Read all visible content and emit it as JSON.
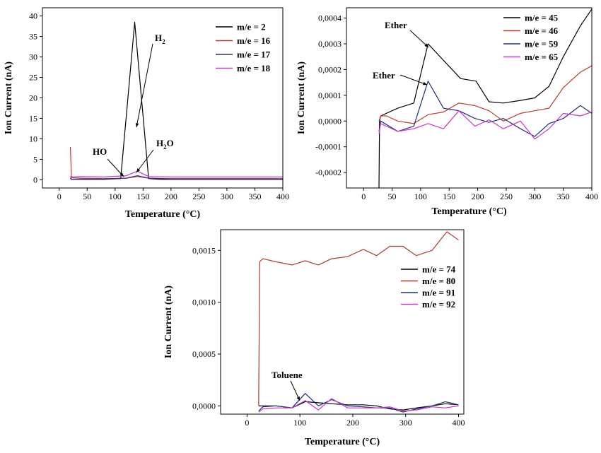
{
  "chart_data": [
    {
      "type": "line",
      "title": "",
      "xlabel": "Temperature (°C)",
      "ylabel": "Ion Current (nA)",
      "xlim": [
        -30,
        400
      ],
      "ylim": [
        -2,
        42
      ],
      "xticks": [
        0,
        50,
        100,
        150,
        200,
        250,
        300,
        350,
        400
      ],
      "xtick_labels": [
        "0",
        "50",
        "100",
        "150",
        "200",
        "250",
        "300",
        "350",
        "400"
      ],
      "yticks": [
        0,
        5,
        10,
        15,
        20,
        25,
        30,
        35,
        40
      ],
      "ytick_labels": [
        "0",
        "5",
        "10",
        "15",
        "20",
        "25",
        "30",
        "35",
        "40"
      ],
      "legend_position": "top-right",
      "series": [
        {
          "name": "m/e = 2",
          "color": "#000000",
          "x": [
            20,
            22,
            40,
            80,
            110,
            135,
            160,
            180,
            250,
            300,
            350,
            400
          ],
          "y": [
            0.5,
            0.1,
            0.1,
            0.1,
            0.3,
            38.5,
            0.3,
            0.1,
            0.1,
            0.1,
            0.1,
            0.1
          ]
        },
        {
          "name": "m/e = 16",
          "color": "#c0392b",
          "x": [
            20,
            22,
            40,
            80,
            120,
            140,
            160,
            200,
            300,
            400
          ],
          "y": [
            8,
            0.5,
            0.4,
            0.3,
            0.4,
            0.8,
            0.4,
            0.3,
            0.3,
            0.3
          ]
        },
        {
          "name": "m/e = 17",
          "color": "#2c2c8c",
          "x": [
            20,
            22,
            40,
            80,
            120,
            140,
            160,
            200,
            300,
            400
          ],
          "y": [
            0.3,
            0.1,
            0.2,
            0.2,
            0.4,
            1.0,
            0.4,
            0.2,
            0.2,
            0.2
          ]
        },
        {
          "name": "m/e = 18",
          "color": "#cc33cc",
          "x": [
            20,
            22,
            40,
            80,
            120,
            140,
            160,
            200,
            300,
            400
          ],
          "y": [
            0.9,
            0.7,
            0.8,
            0.7,
            1.0,
            2.1,
            0.8,
            0.7,
            0.7,
            0.7
          ]
        }
      ],
      "annotations": [
        {
          "text": "H2",
          "main": "H",
          "sub": "2"
        },
        {
          "text": "HO",
          "main": "HO",
          "sub": ""
        },
        {
          "text": "H2O",
          "main": "H",
          "sub": "2",
          "tail": "O"
        }
      ]
    },
    {
      "type": "line",
      "title": "",
      "xlabel": "Temperature (°C)",
      "ylabel": "Ion Current (nA)",
      "xlim": [
        -30,
        400
      ],
      "ylim": [
        -0.00026,
        0.00044
      ],
      "xticks": [
        0,
        50,
        100,
        150,
        200,
        250,
        300,
        350,
        400
      ],
      "xtick_labels": [
        "0",
        "50",
        "100",
        "150",
        "200",
        "250",
        "300",
        "350",
        "400"
      ],
      "yticks": [
        -0.0002,
        -0.0001,
        0,
        0.0001,
        0.0002,
        0.0003,
        0.0004
      ],
      "ytick_labels": [
        "-0,0002",
        "-0,0001",
        "0,0000",
        "0,0001",
        "0,0002",
        "0,0003",
        "0,0004"
      ],
      "legend_position": "top-right",
      "series": [
        {
          "name": "m/e = 45",
          "color": "#000000",
          "x": [
            27,
            28,
            30,
            60,
            88,
            113,
            170,
            197,
            220,
            245,
            275,
            300,
            325,
            350,
            380,
            400
          ],
          "y": [
            -0.00026,
            0.0,
            2e-05,
            5e-05,
            7e-05,
            0.0003,
            0.000165,
            0.000155,
            7.5e-05,
            7e-05,
            8e-05,
            9e-05,
            0.000135,
            0.00025,
            0.00037,
            0.000435
          ]
        },
        {
          "name": "m/e = 46",
          "color": "#c0392b",
          "x": [
            27,
            30,
            40,
            60,
            88,
            113,
            140,
            167,
            195,
            220,
            245,
            275,
            300,
            325,
            350,
            380,
            400
          ],
          "y": [
            0.0,
            2e-05,
            2e-05,
            0.0,
            -1e-05,
            2.5e-05,
            3.5e-05,
            7e-05,
            6e-05,
            4e-05,
            0.0,
            3e-05,
            4e-05,
            5e-05,
            0.00013,
            0.00019,
            0.000215
          ]
        },
        {
          "name": "m/e = 59",
          "color": "#1f2e7a",
          "x": [
            27,
            30,
            60,
            88,
            113,
            140,
            167,
            195,
            220,
            245,
            275,
            300,
            325,
            350,
            380,
            400
          ],
          "y": [
            -4e-05,
            0.0,
            -4e-05,
            -2e-05,
            0.000155,
            5e-05,
            4e-05,
            1e-05,
            -5e-06,
            1e-05,
            -3e-05,
            -6e-05,
            -1e-05,
            1e-05,
            6e-05,
            3e-05
          ]
        },
        {
          "name": "m/e = 65",
          "color": "#cc33cc",
          "x": [
            27,
            30,
            60,
            88,
            113,
            140,
            167,
            195,
            220,
            245,
            275,
            300,
            325,
            350,
            380,
            400
          ],
          "y": [
            -5e-05,
            -1e-05,
            -4e-05,
            -3e-05,
            -1e-05,
            -3e-05,
            4e-05,
            -2e-05,
            5e-06,
            -3e-05,
            0.0,
            -7e-05,
            -3e-05,
            3e-05,
            2e-05,
            3.5e-05
          ]
        }
      ],
      "annotations": [
        {
          "text": "Ether",
          "main": "Ether",
          "sub": ""
        },
        {
          "text": "Ether",
          "main": "Ether",
          "sub": ""
        }
      ]
    },
    {
      "type": "line",
      "title": "",
      "xlabel": "Temperature (°C)",
      "ylabel": "Ion Current (nA)",
      "xlim": [
        -50,
        410
      ],
      "ylim": [
        -8e-05,
        0.0017
      ],
      "xticks": [
        0,
        100,
        200,
        300,
        400
      ],
      "xtick_labels": [
        "0",
        "100",
        "200",
        "300",
        "400"
      ],
      "yticks": [
        0,
        0.0005,
        0.001,
        0.0015
      ],
      "ytick_labels": [
        "0,0000",
        "0,0005",
        "0,0010",
        "0,0015"
      ],
      "legend_position": "center-right",
      "series": [
        {
          "name": "m/e = 74",
          "color": "#000000",
          "x": [
            22,
            30,
            55,
            85,
            110,
            135,
            160,
            190,
            220,
            245,
            270,
            295,
            320,
            350,
            375,
            400
          ],
          "y": [
            0.0,
            0.0,
            0.0,
            -2e-05,
            4e-05,
            3e-05,
            2e-05,
            1e-05,
            1e-05,
            0.0,
            -3e-05,
            -4e-05,
            -2e-05,
            0.0,
            2e-05,
            1e-05
          ]
        },
        {
          "name": "m/e = 80",
          "color": "#b03a2e",
          "x": [
            22,
            24,
            30,
            55,
            85,
            110,
            135,
            160,
            190,
            220,
            245,
            270,
            295,
            320,
            350,
            378,
            400
          ],
          "y": [
            0.0,
            0.00139,
            0.00142,
            0.00139,
            0.00136,
            0.0014,
            0.00136,
            0.00142,
            0.00144,
            0.00151,
            0.00145,
            0.00154,
            0.00154,
            0.00145,
            0.0015,
            0.00168,
            0.0016
          ]
        },
        {
          "name": "m/e = 91",
          "color": "#1f2e7a",
          "x": [
            22,
            30,
            55,
            85,
            110,
            135,
            160,
            190,
            220,
            245,
            270,
            295,
            320,
            350,
            375,
            400
          ],
          "y": [
            -5e-05,
            -1e-05,
            0.0,
            -2e-05,
            0.00012,
            0.0,
            6e-05,
            0.0,
            -1e-05,
            -2e-05,
            -2e-05,
            -6e-05,
            -3e-05,
            0.0,
            4e-05,
            1e-05
          ]
        },
        {
          "name": "m/e = 92",
          "color": "#cc33cc",
          "x": [
            22,
            30,
            55,
            85,
            110,
            135,
            160,
            190,
            220,
            245,
            270,
            295,
            320,
            350,
            375,
            400
          ],
          "y": [
            -6e-05,
            -3e-05,
            -2e-05,
            -2e-05,
            5e-05,
            -4e-05,
            7e-05,
            -2e-05,
            -2e-05,
            -2e-05,
            -1e-05,
            -5e-05,
            -4e-05,
            -1e-05,
            -2e-05,
            0.0
          ]
        }
      ],
      "annotations": [
        {
          "text": "Toluene",
          "main": "Toluene",
          "sub": ""
        }
      ]
    }
  ]
}
